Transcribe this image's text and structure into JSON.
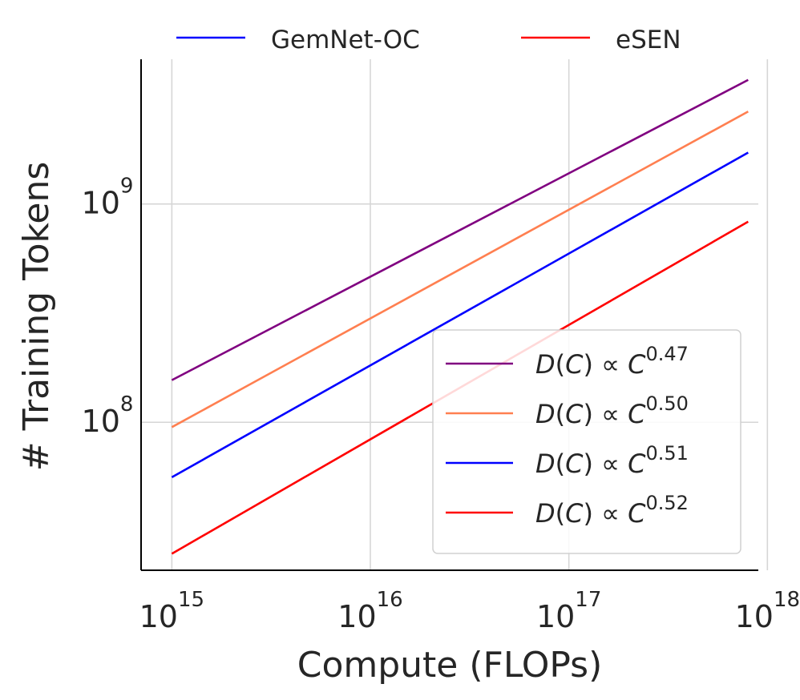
{
  "chart_data": {
    "type": "line",
    "xscale": "log",
    "yscale": "log",
    "xlim": [
      700000000000000.0,
      9e+17
    ],
    "ylim": [
      21000000.0,
      4600000000.0
    ],
    "xlabel": "Compute (FLOPs)",
    "ylabel": "# Training Tokens",
    "grid": true,
    "x_ticks": [
      {
        "value": 1000000000000000.0,
        "base": "10",
        "exp": "15"
      },
      {
        "value": 1e+16,
        "base": "10",
        "exp": "16"
      },
      {
        "value": 1e+17,
        "base": "10",
        "exp": "17"
      },
      {
        "value": 1e+18,
        "base": "10",
        "exp": "18"
      }
    ],
    "y_ticks": [
      {
        "value": 100000000.0,
        "base": "10",
        "exp": "8"
      },
      {
        "value": 1000000000.0,
        "base": "10",
        "exp": "9"
      }
    ],
    "top_legend": [
      {
        "label": "GemNet-OC",
        "color": "#0000ff"
      },
      {
        "label": "eSEN",
        "color": "#ff0000"
      }
    ],
    "series": [
      {
        "name": "D(C) ∝ C^0.47",
        "exponent": "0.47",
        "color": "#800080",
        "x": [
          1000000000000000.0,
          8e+17
        ],
        "y": [
          156000000.0,
          3700000000.0
        ]
      },
      {
        "name": "D(C) ∝ C^0.50",
        "exponent": "0.50",
        "color": "#ff7f50",
        "x": [
          1000000000000000.0,
          8e+17
        ],
        "y": [
          95000000.0,
          2650000000.0
        ]
      },
      {
        "name": "D(C) ∝ C^0.51",
        "exponent": "0.51",
        "color": "#0000ff",
        "x": [
          1000000000000000.0,
          8e+17
        ],
        "y": [
          56000000.0,
          1720000000.0
        ]
      },
      {
        "name": "D(C) ∝ C^0.52",
        "exponent": "0.52",
        "color": "#ff0000",
        "x": [
          1000000000000000.0,
          8e+17
        ],
        "y": [
          25000000.0,
          830000000.0
        ]
      }
    ],
    "fit_legend_placement": "lower-right"
  }
}
